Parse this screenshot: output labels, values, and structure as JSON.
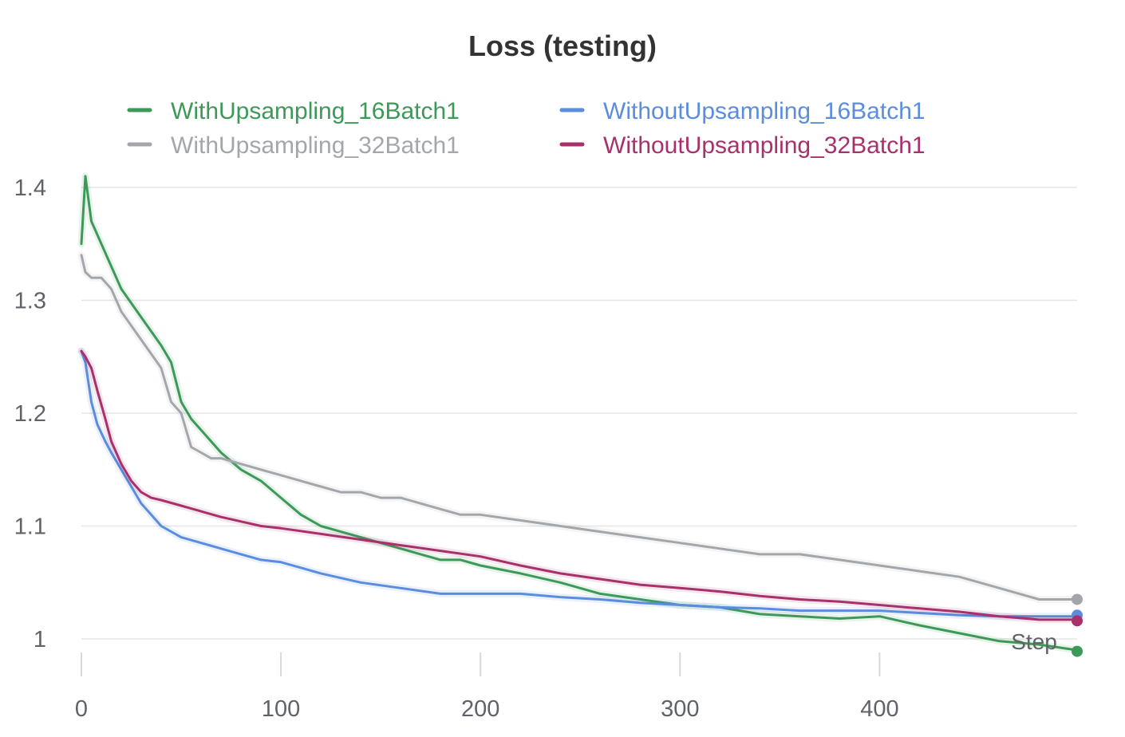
{
  "chart_data": {
    "type": "line",
    "title": "Loss (testing)",
    "xlabel": "Step",
    "ylabel": "",
    "xlim": [
      0,
      500
    ],
    "ylim": [
      0.98,
      1.42
    ],
    "x_ticks": [
      0,
      100,
      200,
      300,
      400
    ],
    "x_tick_labels": [
      "0",
      "100",
      "200",
      "300",
      "400"
    ],
    "y_ticks": [
      1.0,
      1.1,
      1.2,
      1.3,
      1.4
    ],
    "y_tick_labels": [
      "1",
      "1.1",
      "1.2",
      "1.3",
      "1.4"
    ],
    "grid": "horizontal",
    "legend_position": "top",
    "series": [
      {
        "name": "WithUpsampling_16Batch1",
        "color": "#3d9958",
        "x": [
          0,
          2,
          5,
          10,
          15,
          20,
          30,
          40,
          45,
          50,
          55,
          60,
          65,
          70,
          80,
          90,
          100,
          110,
          120,
          130,
          140,
          150,
          160,
          170,
          180,
          190,
          200,
          220,
          240,
          260,
          280,
          300,
          320,
          340,
          360,
          380,
          400,
          420,
          440,
          460,
          480,
          499
        ],
        "values": [
          1.35,
          1.41,
          1.37,
          1.35,
          1.33,
          1.31,
          1.285,
          1.26,
          1.245,
          1.21,
          1.195,
          1.185,
          1.175,
          1.165,
          1.15,
          1.14,
          1.125,
          1.11,
          1.1,
          1.095,
          1.09,
          1.085,
          1.08,
          1.075,
          1.07,
          1.07,
          1.065,
          1.058,
          1.05,
          1.04,
          1.035,
          1.03,
          1.028,
          1.022,
          1.02,
          1.018,
          1.02,
          1.012,
          1.005,
          0.998,
          0.995,
          0.99
        ]
      },
      {
        "name": "WithUpsampling_32Batch1",
        "color": "#a3a7ab",
        "x": [
          0,
          2,
          5,
          10,
          15,
          20,
          30,
          40,
          45,
          50,
          55,
          60,
          65,
          70,
          80,
          90,
          100,
          110,
          120,
          130,
          140,
          150,
          160,
          170,
          180,
          190,
          200,
          220,
          240,
          260,
          280,
          300,
          320,
          340,
          360,
          380,
          400,
          420,
          440,
          460,
          480,
          499
        ],
        "values": [
          1.34,
          1.325,
          1.32,
          1.32,
          1.31,
          1.29,
          1.265,
          1.24,
          1.21,
          1.2,
          1.17,
          1.165,
          1.16,
          1.16,
          1.155,
          1.15,
          1.145,
          1.14,
          1.135,
          1.13,
          1.13,
          1.125,
          1.125,
          1.12,
          1.115,
          1.11,
          1.11,
          1.105,
          1.1,
          1.095,
          1.09,
          1.085,
          1.08,
          1.075,
          1.075,
          1.07,
          1.065,
          1.06,
          1.055,
          1.045,
          1.035,
          1.035
        ]
      },
      {
        "name": "WithoutUpsampling_16Batch1",
        "color": "#5b8ddf",
        "x": [
          0,
          2,
          5,
          8,
          12,
          15,
          20,
          25,
          30,
          35,
          40,
          50,
          60,
          70,
          80,
          90,
          100,
          120,
          140,
          160,
          180,
          200,
          220,
          240,
          260,
          280,
          300,
          320,
          340,
          360,
          380,
          400,
          420,
          440,
          460,
          480,
          499
        ],
        "values": [
          1.255,
          1.245,
          1.21,
          1.19,
          1.175,
          1.165,
          1.15,
          1.135,
          1.12,
          1.11,
          1.1,
          1.09,
          1.085,
          1.08,
          1.075,
          1.07,
          1.068,
          1.058,
          1.05,
          1.045,
          1.04,
          1.04,
          1.04,
          1.037,
          1.035,
          1.032,
          1.03,
          1.028,
          1.027,
          1.025,
          1.025,
          1.025,
          1.023,
          1.021,
          1.02,
          1.02,
          1.02
        ]
      },
      {
        "name": "WithoutUpsampling_32Batch1",
        "color": "#a8306b",
        "x": [
          0,
          2,
          5,
          8,
          12,
          15,
          20,
          25,
          30,
          35,
          40,
          50,
          60,
          70,
          80,
          90,
          100,
          120,
          140,
          160,
          180,
          200,
          220,
          240,
          260,
          280,
          300,
          320,
          340,
          360,
          380,
          400,
          420,
          440,
          460,
          480,
          499
        ],
        "values": [
          1.255,
          1.25,
          1.24,
          1.22,
          1.195,
          1.175,
          1.155,
          1.14,
          1.13,
          1.125,
          1.123,
          1.118,
          1.113,
          1.108,
          1.104,
          1.1,
          1.098,
          1.093,
          1.088,
          1.083,
          1.078,
          1.073,
          1.065,
          1.058,
          1.053,
          1.048,
          1.045,
          1.042,
          1.038,
          1.035,
          1.033,
          1.03,
          1.027,
          1.024,
          1.02,
          1.017,
          1.017
        ]
      }
    ],
    "end_markers": [
      {
        "series": "WithUpsampling_32Batch1",
        "x": 499,
        "y": 1.035,
        "color": "#a3a7ab"
      },
      {
        "series": "WithoutUpsampling_16Batch1",
        "x": 499,
        "y": 1.021,
        "color": "#5b8ddf"
      },
      {
        "series": "WithoutUpsampling_32Batch1",
        "x": 499,
        "y": 1.016,
        "color": "#a8306b"
      },
      {
        "series": "WithUpsampling_16Batch1",
        "x": 499,
        "y": 0.989,
        "color": "#3d9958"
      }
    ]
  }
}
